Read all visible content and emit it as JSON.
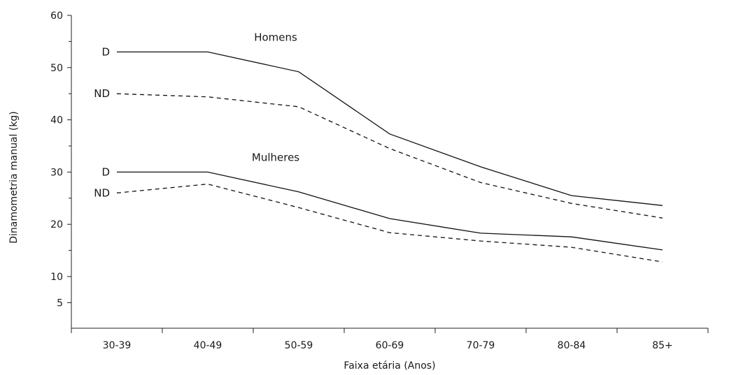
{
  "chart_data": {
    "type": "line",
    "title": "",
    "xlabel": "Faixa etária (Anos)",
    "ylabel": "Dinamometria manual (kg)",
    "categories": [
      "30-39",
      "40-49",
      "50-59",
      "60-69",
      "70-79",
      "80-84",
      "85+"
    ],
    "ylim": [
      5,
      60
    ],
    "yticks": [
      5,
      10,
      20,
      30,
      40,
      50,
      60
    ],
    "grid": false,
    "groups": [
      {
        "name": "Homens"
      },
      {
        "name": "Mulheres"
      }
    ],
    "series": [
      {
        "name": "D",
        "group": "Homens",
        "style": "solid",
        "values": [
          53,
          53,
          49.2,
          37.3,
          31,
          25.5,
          23.6
        ]
      },
      {
        "name": "ND",
        "group": "Homens",
        "style": "dashed",
        "values": [
          45,
          44.4,
          42.5,
          34.5,
          28,
          24,
          21.2
        ]
      },
      {
        "name": "D",
        "group": "Mulheres",
        "style": "solid",
        "values": [
          30,
          30,
          26.2,
          21.1,
          18.3,
          17.6,
          15.1
        ]
      },
      {
        "name": "ND",
        "group": "Mulheres",
        "style": "dashed",
        "values": [
          26,
          27.7,
          23.2,
          18.4,
          16.8,
          15.6,
          12.8
        ]
      }
    ]
  }
}
